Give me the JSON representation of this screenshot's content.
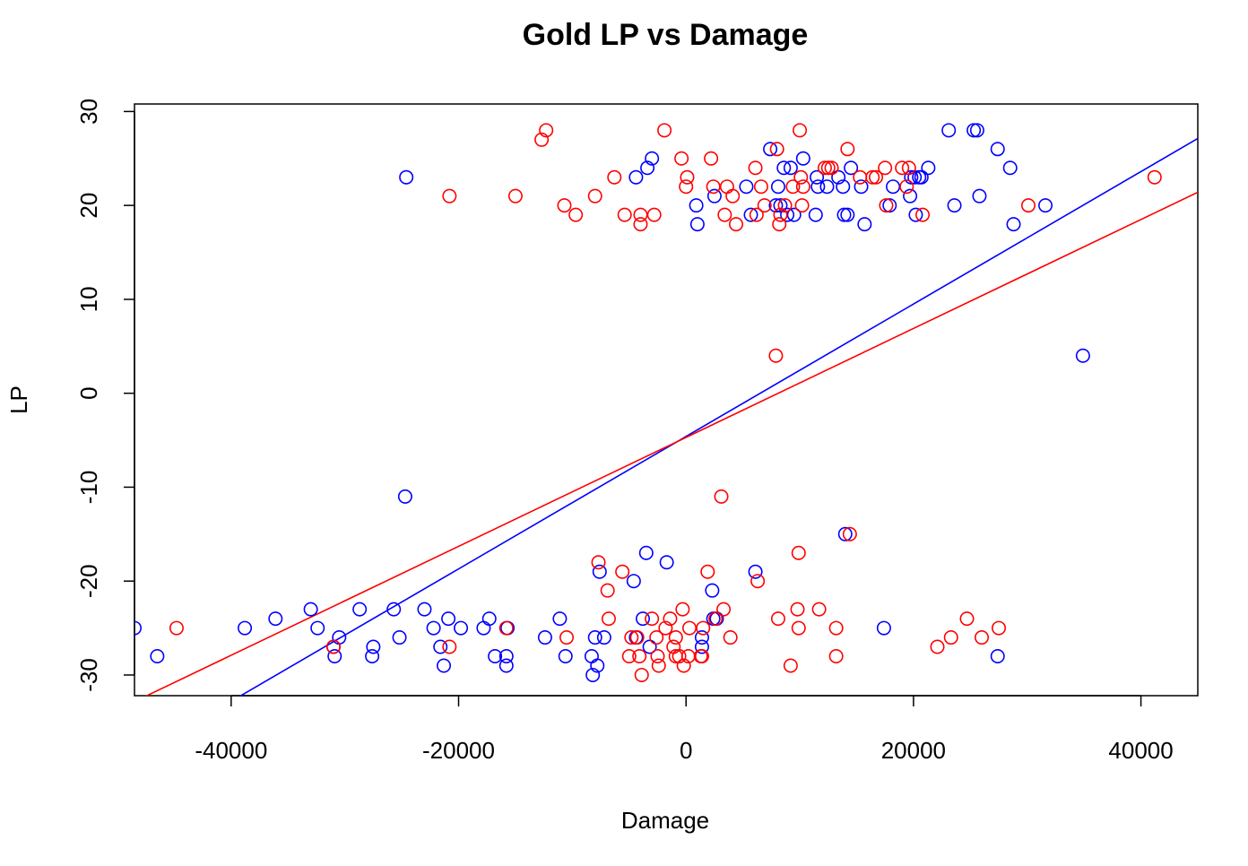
{
  "chart_data": {
    "type": "scatter",
    "title": "Gold LP vs Damage",
    "xlabel": "Damage",
    "ylabel": "LP",
    "xlim": [
      -48500,
      45000
    ],
    "ylim": [
      -32.2,
      30.8
    ],
    "x_ticks": [
      -40000,
      -20000,
      0,
      20000,
      40000
    ],
    "x_tick_labels": [
      "-40000",
      "-20000",
      "0",
      "20000",
      "40000"
    ],
    "y_ticks": [
      -30,
      -20,
      -10,
      0,
      10,
      20,
      30
    ],
    "y_tick_labels": [
      "-30",
      "-20",
      "-10",
      "0",
      "10",
      "20",
      "30"
    ],
    "grid": false,
    "legend": "none",
    "series": [
      {
        "color": "#0000ff",
        "points": [
          [
            -48500,
            -25
          ],
          [
            -46500,
            -28
          ],
          [
            -38800,
            -25
          ],
          [
            -36100,
            -24
          ],
          [
            -33000,
            -23
          ],
          [
            -32400,
            -25
          ],
          [
            -31000,
            -27
          ],
          [
            -30900,
            -28
          ],
          [
            -30500,
            -26
          ],
          [
            -28700,
            -23
          ],
          [
            -27500,
            -27
          ],
          [
            -27600,
            -28
          ],
          [
            -25700,
            -23
          ],
          [
            -25200,
            -26
          ],
          [
            -24600,
            23
          ],
          [
            -24700,
            -11
          ],
          [
            -23000,
            -23
          ],
          [
            -22200,
            -25
          ],
          [
            -21600,
            -27
          ],
          [
            -21300,
            -29
          ],
          [
            -20900,
            -24
          ],
          [
            -19800,
            -25
          ],
          [
            -17800,
            -25
          ],
          [
            -17300,
            -24
          ],
          [
            -16800,
            -28
          ],
          [
            -15800,
            -28
          ],
          [
            -15800,
            -29
          ],
          [
            -15700,
            -25
          ],
          [
            -12400,
            -26
          ],
          [
            -11100,
            -24
          ],
          [
            -10600,
            -28
          ],
          [
            -8300,
            -28
          ],
          [
            -8200,
            -30
          ],
          [
            -8000,
            -26
          ],
          [
            -7800,
            -29
          ],
          [
            -7600,
            -19
          ],
          [
            -7200,
            -26
          ],
          [
            -4600,
            -20
          ],
          [
            -4400,
            -26
          ],
          [
            -4400,
            23
          ],
          [
            -3800,
            -24
          ],
          [
            -3500,
            -17
          ],
          [
            -3400,
            24
          ],
          [
            -3200,
            -27
          ],
          [
            -3000,
            25
          ],
          [
            -1700,
            -18
          ],
          [
            900,
            20
          ],
          [
            1000,
            18
          ],
          [
            1400,
            -27
          ],
          [
            1400,
            -26
          ],
          [
            2300,
            -21
          ],
          [
            2400,
            -24
          ],
          [
            2500,
            21
          ],
          [
            2700,
            -24
          ],
          [
            5300,
            22
          ],
          [
            5700,
            19
          ],
          [
            6100,
            -19
          ],
          [
            7400,
            26
          ],
          [
            7900,
            20
          ],
          [
            8100,
            22
          ],
          [
            8300,
            20
          ],
          [
            8600,
            24
          ],
          [
            8900,
            19
          ],
          [
            9200,
            24
          ],
          [
            9500,
            19
          ],
          [
            10300,
            25
          ],
          [
            11400,
            19
          ],
          [
            11500,
            23
          ],
          [
            11600,
            22
          ],
          [
            12400,
            22
          ],
          [
            13400,
            23
          ],
          [
            13800,
            22
          ],
          [
            13900,
            19
          ],
          [
            14000,
            -15
          ],
          [
            14200,
            19
          ],
          [
            14500,
            24
          ],
          [
            15400,
            22
          ],
          [
            15700,
            18
          ],
          [
            17400,
            -25
          ],
          [
            17900,
            20
          ],
          [
            18200,
            22
          ],
          [
            19700,
            21
          ],
          [
            19800,
            23
          ],
          [
            20100,
            23
          ],
          [
            20200,
            19
          ],
          [
            20500,
            23
          ],
          [
            20700,
            23
          ],
          [
            21300,
            24
          ],
          [
            23100,
            28
          ],
          [
            23600,
            20
          ],
          [
            25300,
            28
          ],
          [
            25600,
            28
          ],
          [
            25800,
            21
          ],
          [
            27400,
            26
          ],
          [
            27400,
            -28
          ],
          [
            28500,
            24
          ],
          [
            28800,
            18
          ],
          [
            31600,
            20
          ],
          [
            34900,
            4
          ]
        ]
      },
      {
        "color": "#ff0000",
        "points": [
          [
            -44800,
            -25
          ],
          [
            -31000,
            -27
          ],
          [
            -20800,
            21
          ],
          [
            -20800,
            -27
          ],
          [
            -15000,
            21
          ],
          [
            -15800,
            -25
          ],
          [
            -12700,
            27
          ],
          [
            -12300,
            28
          ],
          [
            -10700,
            20
          ],
          [
            -10500,
            -26
          ],
          [
            -9700,
            19
          ],
          [
            -8000,
            21
          ],
          [
            -7700,
            -18
          ],
          [
            -6900,
            -21
          ],
          [
            -6800,
            -24
          ],
          [
            -6300,
            23
          ],
          [
            -5600,
            -19
          ],
          [
            -5400,
            19
          ],
          [
            -5000,
            -28
          ],
          [
            -4800,
            -26
          ],
          [
            -4300,
            -26
          ],
          [
            -4100,
            -28
          ],
          [
            -4000,
            19
          ],
          [
            -4000,
            18
          ],
          [
            -3900,
            -30
          ],
          [
            -3000,
            -24
          ],
          [
            -2800,
            19
          ],
          [
            -2600,
            -26
          ],
          [
            -2500,
            -28
          ],
          [
            -2400,
            -29
          ],
          [
            -1900,
            28
          ],
          [
            -1800,
            -25
          ],
          [
            -1400,
            -24
          ],
          [
            -1100,
            -27
          ],
          [
            -900,
            -28
          ],
          [
            -900,
            -26
          ],
          [
            -600,
            -28
          ],
          [
            -400,
            25
          ],
          [
            -300,
            -23
          ],
          [
            -200,
            -29
          ],
          [
            0,
            22
          ],
          [
            100,
            23
          ],
          [
            200,
            -28
          ],
          [
            300,
            -25
          ],
          [
            1300,
            -28
          ],
          [
            1400,
            -28
          ],
          [
            1500,
            -25
          ],
          [
            1900,
            -19
          ],
          [
            2200,
            25
          ],
          [
            2400,
            22
          ],
          [
            2600,
            -24
          ],
          [
            3100,
            -11
          ],
          [
            3300,
            -23
          ],
          [
            3400,
            19
          ],
          [
            3600,
            22
          ],
          [
            3900,
            -26
          ],
          [
            4100,
            21
          ],
          [
            4400,
            18
          ],
          [
            6100,
            24
          ],
          [
            6200,
            19
          ],
          [
            6300,
            -20
          ],
          [
            6600,
            22
          ],
          [
            6900,
            20
          ],
          [
            7900,
            4
          ],
          [
            8000,
            26
          ],
          [
            8100,
            -24
          ],
          [
            8200,
            18
          ],
          [
            8300,
            19
          ],
          [
            8700,
            20
          ],
          [
            9200,
            -29
          ],
          [
            9400,
            22
          ],
          [
            9800,
            -23
          ],
          [
            9900,
            -25
          ],
          [
            9900,
            -17
          ],
          [
            10000,
            28
          ],
          [
            10100,
            23
          ],
          [
            10200,
            20
          ],
          [
            10300,
            22
          ],
          [
            11700,
            -23
          ],
          [
            12200,
            24
          ],
          [
            12500,
            24
          ],
          [
            12800,
            24
          ],
          [
            13200,
            -25
          ],
          [
            13200,
            -28
          ],
          [
            14200,
            26
          ],
          [
            14400,
            -15
          ],
          [
            15300,
            23
          ],
          [
            16400,
            23
          ],
          [
            16700,
            23
          ],
          [
            17500,
            24
          ],
          [
            17600,
            20
          ],
          [
            19000,
            24
          ],
          [
            19400,
            22
          ],
          [
            19600,
            24
          ],
          [
            20800,
            19
          ],
          [
            22100,
            -27
          ],
          [
            23300,
            -26
          ],
          [
            24700,
            -24
          ],
          [
            26000,
            -26
          ],
          [
            27500,
            -25
          ],
          [
            30100,
            20
          ],
          [
            41200,
            23
          ]
        ]
      }
    ],
    "regression_lines": [
      {
        "color": "#0000ff",
        "intercept": -4.6,
        "slope": 0.000705
      },
      {
        "color": "#ff0000",
        "intercept": -4.7,
        "slope": 0.00058
      }
    ]
  }
}
